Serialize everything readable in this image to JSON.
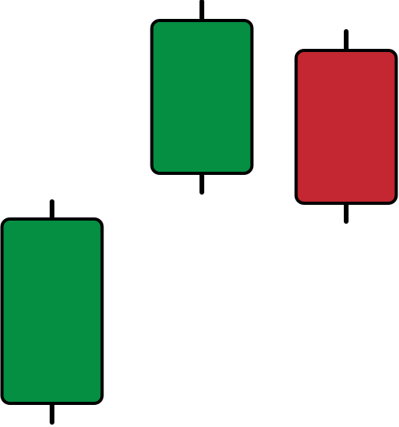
{
  "chart_data": {
    "type": "candlestick",
    "title": "",
    "xlabel": "",
    "ylabel": "",
    "grid": false,
    "legend": "none",
    "axes_visible": false,
    "ylim": [
      0,
      542
    ],
    "candles": [
      {
        "open": 30,
        "close": 264,
        "high": 288,
        "low": 4,
        "direction": "up"
      },
      {
        "open": 322,
        "close": 516,
        "high": 542,
        "low": 296,
        "direction": "up"
      },
      {
        "open": 478,
        "close": 284,
        "high": 504,
        "low": 259,
        "direction": "down"
      }
    ],
    "colors": {
      "up": "#048f42",
      "down": "#c42731",
      "outline": "#000000",
      "background": "#ffffff"
    }
  }
}
